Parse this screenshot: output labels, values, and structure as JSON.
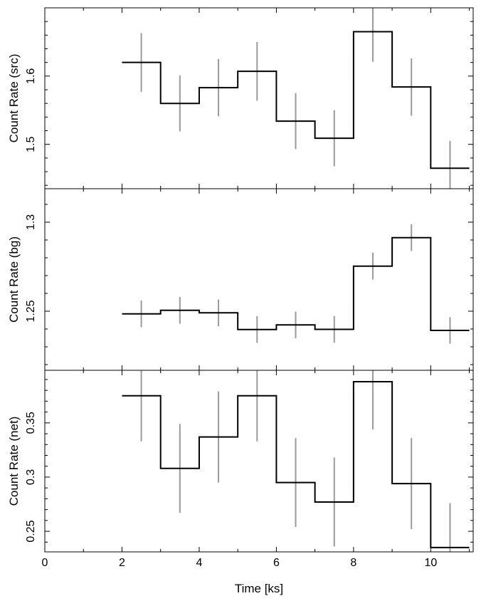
{
  "chart_data": [
    {
      "type": "line",
      "ylabel": "Count Rate (src)",
      "xlim": [
        0,
        11.1
      ],
      "ylim": [
        1.435,
        1.7
      ],
      "yticks": [
        1.5,
        1.6
      ],
      "ytick_labels": [
        "1.5",
        "1.6"
      ],
      "bins_x": [
        2,
        3,
        4,
        5,
        6,
        7,
        8,
        9,
        10,
        11
      ],
      "values": [
        1.62,
        1.56,
        1.583,
        1.607,
        1.534,
        1.509,
        1.665,
        1.584,
        1.465
      ],
      "errors": [
        0.043,
        0.041,
        0.042,
        0.043,
        0.041,
        0.041,
        0.044,
        0.042,
        0.04
      ],
      "colors": {
        "step": "#000000",
        "errorbar": "#9a9a9a"
      }
    },
    {
      "type": "line",
      "ylabel": "Count Rate (bg)",
      "xlim": [
        0,
        11.1
      ],
      "ylim": [
        1.2168,
        1.3188
      ],
      "yticks": [
        1.25,
        1.3
      ],
      "ytick_labels": [
        "1.25",
        "1.3"
      ],
      "bins_x": [
        2,
        3,
        4,
        5,
        6,
        7,
        8,
        9,
        10,
        11
      ],
      "values": [
        1.2485,
        1.2505,
        1.2491,
        1.2397,
        1.2423,
        1.2398,
        1.2753,
        1.2913,
        1.2392
      ],
      "errors": [
        0.0075,
        0.0075,
        0.0075,
        0.0075,
        0.0075,
        0.0075,
        0.0075,
        0.0075,
        0.0075
      ],
      "colors": {
        "step": "#000000",
        "errorbar": "#9a9a9a"
      }
    },
    {
      "type": "line",
      "ylabel": "Count Rate (net)",
      "xlabel": "Time [ks]",
      "xlim": [
        0,
        11.1
      ],
      "ylim": [
        0.231,
        0.3985
      ],
      "xticks": [
        0,
        2,
        4,
        6,
        8,
        10
      ],
      "xtick_labels": [
        "0",
        "2",
        "4",
        "6",
        "8",
        "10"
      ],
      "yticks": [
        0.25,
        0.3,
        0.35
      ],
      "ytick_labels": [
        "0.25",
        "0.3",
        "0.35"
      ],
      "bins_x": [
        2,
        3,
        4,
        5,
        6,
        7,
        8,
        9,
        10,
        11
      ],
      "values": [
        0.375,
        0.308,
        0.337,
        0.375,
        0.295,
        0.277,
        0.388,
        0.294,
        0.235
      ],
      "errors": [
        0.042,
        0.041,
        0.042,
        0.042,
        0.041,
        0.041,
        0.044,
        0.042,
        0.041
      ],
      "colors": {
        "step": "#000000",
        "errorbar": "#9a9a9a"
      }
    }
  ]
}
